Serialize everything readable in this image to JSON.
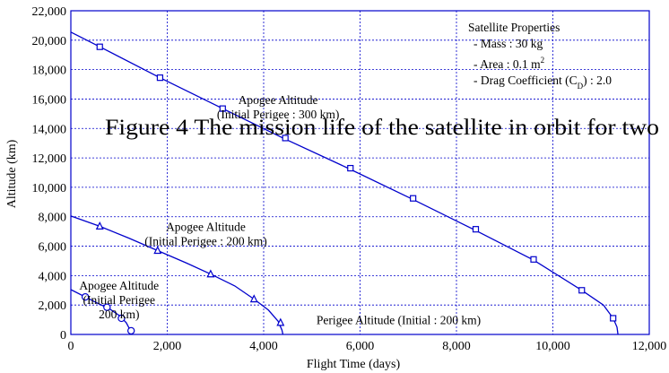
{
  "chart_data": {
    "type": "line",
    "caption": "Figure 4 The mission life of the satellite in orbit for two",
    "xlabel": "Flight Time (days)",
    "ylabel": "Altitude (km)",
    "xlim": [
      0,
      12000
    ],
    "ylim": [
      0,
      22000
    ],
    "x_ticks": [
      0,
      2000,
      4000,
      6000,
      8000,
      10000,
      12000
    ],
    "y_ticks": [
      0,
      2000,
      4000,
      6000,
      8000,
      10000,
      12000,
      14000,
      16000,
      18000,
      20000,
      22000
    ],
    "x_tick_labels": [
      "0",
      "2,000",
      "4,000",
      "6,000",
      "8,000",
      "10,000",
      "12,000"
    ],
    "y_tick_labels": [
      "0",
      "2,000",
      "4,000",
      "6,000",
      "8,000",
      "10,000",
      "12,000",
      "14,000",
      "16,000",
      "18,000",
      "20,000",
      "22,000"
    ],
    "grid": true,
    "colors": {
      "series": "#0000cc",
      "grid": "#0000cc",
      "text": "#000000"
    },
    "series": [
      {
        "marker": "square",
        "points": [
          [
            0,
            20550
          ],
          [
            600,
            19550
          ],
          [
            1850,
            17450
          ],
          [
            3150,
            15350
          ],
          [
            4400,
            13350
          ],
          [
            5750,
            11300
          ],
          [
            7050,
            9250
          ],
          [
            8350,
            7150
          ],
          [
            9600,
            5050
          ],
          [
            10600,
            3000
          ],
          [
            11050,
            2000
          ],
          [
            11250,
            1100
          ],
          [
            11330,
            500
          ],
          [
            11350,
            0
          ]
        ],
        "markers": [
          [
            600,
            19550
          ],
          [
            1850,
            17450
          ],
          [
            3150,
            15350
          ],
          [
            4450,
            13350
          ],
          [
            5800,
            11300
          ],
          [
            7100,
            9250
          ],
          [
            8400,
            7150
          ],
          [
            9600,
            5100
          ],
          [
            10600,
            3000
          ],
          [
            11250,
            1100
          ]
        ]
      },
      {
        "marker": "triangle",
        "points": [
          [
            0,
            8050
          ],
          [
            600,
            7350
          ],
          [
            1200,
            6550
          ],
          [
            1800,
            5700
          ],
          [
            2400,
            4850
          ],
          [
            2900,
            4100
          ],
          [
            3400,
            3300
          ],
          [
            3800,
            2400
          ],
          [
            4100,
            1650
          ],
          [
            4300,
            900
          ],
          [
            4380,
            300
          ],
          [
            4400,
            0
          ]
        ],
        "markers": [
          [
            600,
            7350
          ],
          [
            1800,
            5700
          ],
          [
            2900,
            4100
          ],
          [
            3800,
            2400
          ],
          [
            4350,
            800
          ]
        ]
      },
      {
        "marker": "circle",
        "points": [
          [
            0,
            3050
          ],
          [
            300,
            2550
          ],
          [
            600,
            2050
          ],
          [
            800,
            1750
          ],
          [
            1000,
            1300
          ],
          [
            1150,
            800
          ],
          [
            1230,
            300
          ],
          [
            1260,
            0
          ]
        ],
        "markers": [
          [
            300,
            2550
          ],
          [
            750,
            1850
          ],
          [
            1050,
            1100
          ],
          [
            1250,
            250
          ]
        ]
      }
    ],
    "annotations": [
      {
        "lines": [
          "Apogee Altitude",
          "(Initial Perigee : 300 km)"
        ],
        "x": 4300,
        "y": 15650
      },
      {
        "lines": [
          "Apogee Altitude",
          "(Initial Perigee : 200 km)"
        ],
        "x": 2800,
        "y": 7050
      },
      {
        "lines": [
          "Apogee Altitude",
          "(Initial Perigee",
          "  200 km)"
        ],
        "x": 1000,
        "y": 3050
      },
      {
        "lines": [
          "Perigee Altitude (Initial : 200 km)"
        ],
        "x": 6800,
        "y": 700
      }
    ],
    "legend_box": {
      "title": "Satellite Properties",
      "items": [
        "- Mass : 30 kg",
        "- Area : 0.1 m",
        "- Drag Coefficient (C",
        ") : 2.0"
      ],
      "superscript": "2",
      "subscript": "D"
    }
  }
}
